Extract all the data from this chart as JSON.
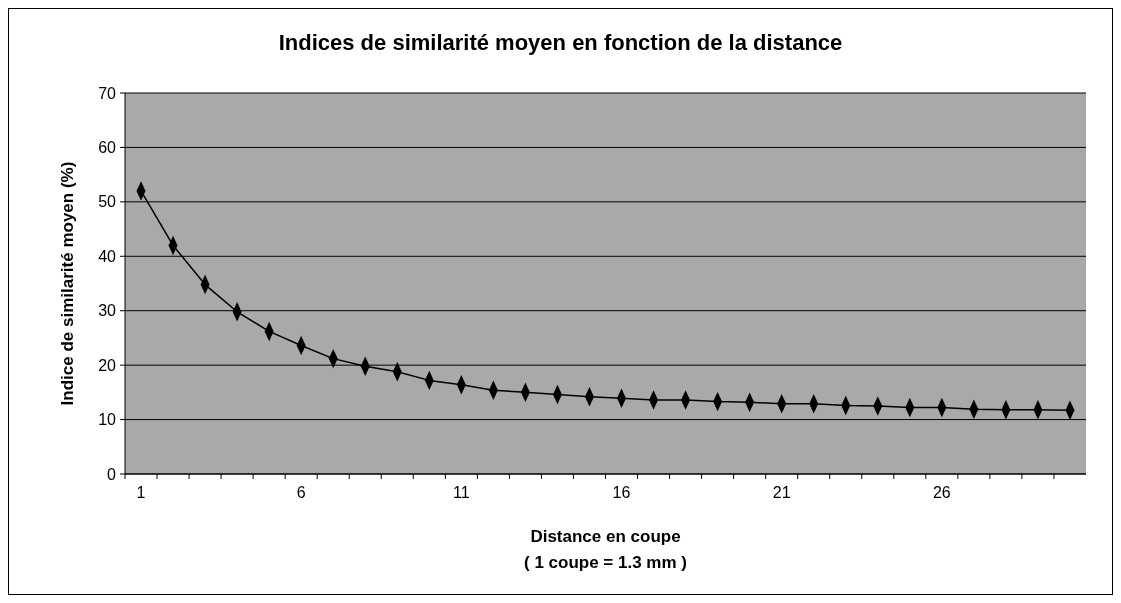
{
  "chart_data": {
    "type": "line",
    "title": "Indices de similarité moyen en fonction de la distance",
    "xlabel": "Distance en coupe\n( 1 coupe = 1.3 mm )",
    "ylabel": "Indice de similarité moyen (%)",
    "categories": [
      "1",
      null,
      null,
      null,
      null,
      "6",
      null,
      null,
      null,
      null,
      "11",
      null,
      null,
      null,
      null,
      "16",
      null,
      null,
      null,
      null,
      "21",
      null,
      null,
      null,
      null,
      "26",
      null,
      null,
      null,
      null
    ],
    "series": [
      {
        "color": "#000000",
        "values": [
          52,
          42,
          34.8,
          29.8,
          26.2,
          23.6,
          21.2,
          19.8,
          18.8,
          17.2,
          16.4,
          15.4,
          15,
          14.6,
          14.2,
          13.9,
          13.6,
          13.6,
          13.3,
          13.2,
          12.9,
          12.9,
          12.6,
          12.5,
          12.2,
          12.2,
          11.9,
          11.8,
          11.8,
          11.7
        ]
      }
    ],
    "ylim": [
      0,
      70
    ],
    "yticks": [
      0,
      10,
      20,
      30,
      40,
      50,
      60,
      70
    ],
    "grid": "y",
    "marker": "diamond",
    "line_style": "solid"
  }
}
